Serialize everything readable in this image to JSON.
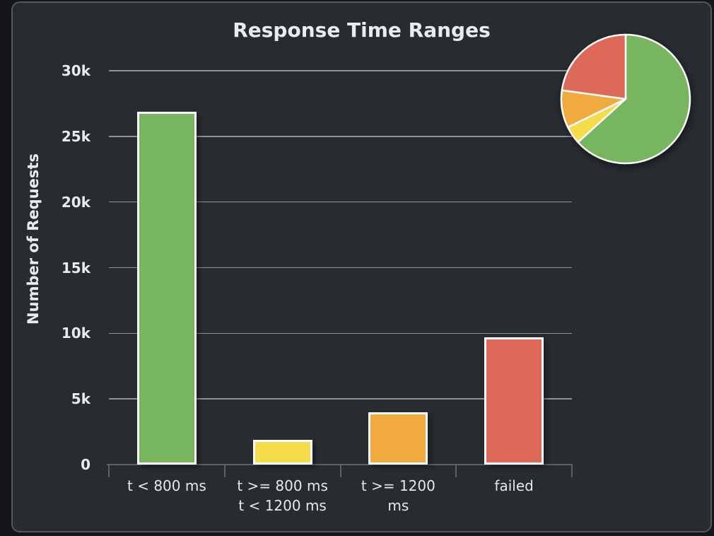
{
  "page": {
    "outer_background": "#141619",
    "panel_background": "#282b30",
    "panel_border_color": "#54575b",
    "text_color": "#e9ebee",
    "gridline_color": "#8f9296",
    "axis_color": "#5d6064"
  },
  "chart_data": {
    "type": "bar",
    "title": "Response Time Ranges",
    "xlabel": "",
    "ylabel": "Number of Requests",
    "categories": [
      "t < 800 ms",
      "t >= 800 ms\nt < 1200 ms",
      "t >= 1200\nms",
      "failed"
    ],
    "values": [
      26900,
      1900,
      4000,
      9700
    ],
    "bar_colors": [
      "#77b55e",
      "#f5dc4b",
      "#f0aa40",
      "#dd6a58"
    ],
    "ylim": [
      0,
      30000
    ],
    "ytick_step": 5000,
    "ytick_labels": [
      "0",
      "5k",
      "10k",
      "15k",
      "20k",
      "25k",
      "30k"
    ],
    "grid": true,
    "legend": false,
    "inset_pie": {
      "type": "pie",
      "values": [
        26900,
        1900,
        4000,
        9700
      ],
      "colors": [
        "#77b55e",
        "#f5dc4b",
        "#f0aa40",
        "#dd6a58"
      ],
      "start_angle": "top",
      "direction": "clockwise",
      "position": "top-right"
    }
  }
}
